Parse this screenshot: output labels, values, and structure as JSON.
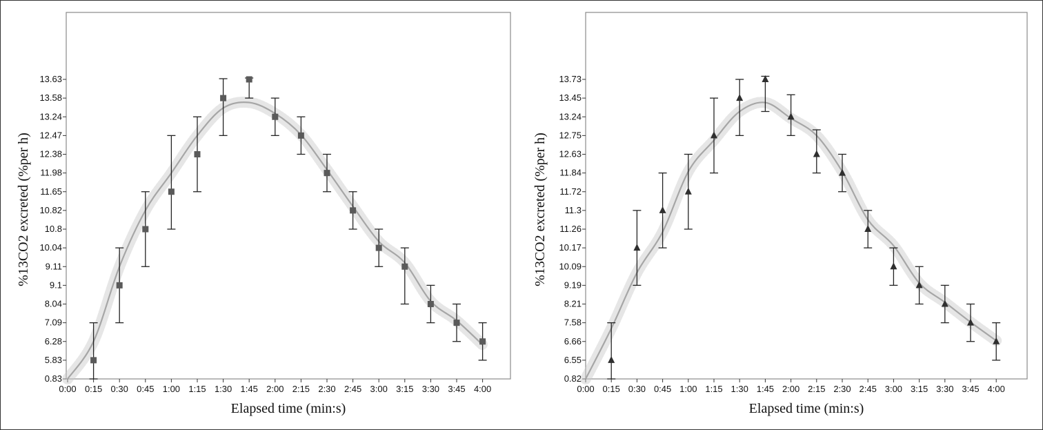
{
  "chart_data": [
    {
      "type": "scatter",
      "xlabel": "Elapsed time (min:s)",
      "ylabel": "%13CO2 excreted (%per h)",
      "y_tick_labels": [
        "0.83",
        "5.83",
        "6.28",
        "7.09",
        "8.04",
        "9.1",
        "9.11",
        "10.04",
        "10.8",
        "10.82",
        "11.65",
        "11.98",
        "12.38",
        "12.47",
        "13.24",
        "13.58",
        "13.63"
      ],
      "categories": [
        "0:00",
        "0:15",
        "0:30",
        "0:45",
        "1:00",
        "1:15",
        "1:30",
        "1:45",
        "2:00",
        "2:15",
        "2:30",
        "2:45",
        "3:00",
        "3:15",
        "3:30",
        "3:45",
        "4:00"
      ],
      "marker": "square",
      "marker_color": "#5a5a5a",
      "fit_color": "#a6a6a6",
      "band_color": "#c8c8c8",
      "points": [
        {
          "x": "0:15",
          "y": 5.83,
          "err_low": 0.83,
          "err_high": 7.09
        },
        {
          "x": "0:30",
          "y": 9.1,
          "err_low": 7.09,
          "err_high": 10.04
        },
        {
          "x": "0:45",
          "y": 10.8,
          "err_low": 9.11,
          "err_high": 11.65
        },
        {
          "x": "1:00",
          "y": 11.65,
          "err_low": 10.8,
          "err_high": 12.47
        },
        {
          "x": "1:15",
          "y": 12.38,
          "err_low": 11.65,
          "err_high": 13.24
        },
        {
          "x": "1:30",
          "y": 13.58,
          "err_low": 12.47,
          "err_high": 13.65
        },
        {
          "x": "1:45",
          "y": 13.63,
          "err_low": 13.58,
          "err_high": 13.67
        },
        {
          "x": "2:00",
          "y": 13.24,
          "err_low": 12.47,
          "err_high": 13.58
        },
        {
          "x": "2:15",
          "y": 12.47,
          "err_low": 12.38,
          "err_high": 13.24
        },
        {
          "x": "2:30",
          "y": 11.98,
          "err_low": 11.65,
          "err_high": 12.38
        },
        {
          "x": "2:45",
          "y": 10.82,
          "err_low": 10.8,
          "err_high": 11.65
        },
        {
          "x": "3:00",
          "y": 10.04,
          "err_low": 9.11,
          "err_high": 10.8
        },
        {
          "x": "3:15",
          "y": 9.11,
          "err_low": 8.04,
          "err_high": 10.04
        },
        {
          "x": "3:30",
          "y": 8.04,
          "err_low": 7.09,
          "err_high": 9.1
        },
        {
          "x": "3:45",
          "y": 7.09,
          "err_low": 6.28,
          "err_high": 8.04
        },
        {
          "x": "4:00",
          "y": 6.28,
          "err_low": 5.83,
          "err_high": 7.09
        }
      ],
      "fit_curve": [
        {
          "x": "0:00",
          "y": 0.83
        },
        {
          "x": "0:15",
          "y": 6.28
        },
        {
          "x": "0:30",
          "y": 9.11
        },
        {
          "x": "0:45",
          "y": 10.82
        },
        {
          "x": "1:00",
          "y": 11.98
        },
        {
          "x": "1:15",
          "y": 12.47
        },
        {
          "x": "1:30",
          "y": 13.4
        },
        {
          "x": "1:45",
          "y": 13.5
        },
        {
          "x": "2:00",
          "y": 13.3
        },
        {
          "x": "2:15",
          "y": 12.5
        },
        {
          "x": "2:30",
          "y": 12.05
        },
        {
          "x": "2:45",
          "y": 11.0
        },
        {
          "x": "3:00",
          "y": 10.3
        },
        {
          "x": "3:15",
          "y": 9.3
        },
        {
          "x": "3:30",
          "y": 8.2
        },
        {
          "x": "3:45",
          "y": 7.2
        },
        {
          "x": "4:00",
          "y": 6.2
        }
      ]
    },
    {
      "type": "scatter",
      "xlabel": "Elapsed time (min:s)",
      "ylabel": "%13CO2 excreted (%per h)",
      "y_tick_labels": [
        "0.82",
        "6.55",
        "6.66",
        "7.58",
        "8.21",
        "9.19",
        "10.09",
        "10.17",
        "11.26",
        "11.3",
        "11.72",
        "11.84",
        "12.63",
        "12.75",
        "13.24",
        "13.45",
        "13.73"
      ],
      "categories": [
        "0:00",
        "0:15",
        "0:30",
        "0:45",
        "1:00",
        "1:15",
        "1:30",
        "1:45",
        "2:00",
        "2:15",
        "2:30",
        "2:45",
        "3:00",
        "3:15",
        "3:30",
        "3:45",
        "4:00"
      ],
      "marker": "triangle",
      "marker_color": "#2f2f2f",
      "fit_color": "#a6a6a6",
      "band_color": "#c8c8c8",
      "points": [
        {
          "x": "0:15",
          "y": 6.55,
          "err_low": 0.82,
          "err_high": 7.58
        },
        {
          "x": "0:30",
          "y": 10.17,
          "err_low": 9.19,
          "err_high": 11.3
        },
        {
          "x": "0:45",
          "y": 11.3,
          "err_low": 10.17,
          "err_high": 11.84
        },
        {
          "x": "1:00",
          "y": 11.72,
          "err_low": 11.26,
          "err_high": 12.63
        },
        {
          "x": "1:15",
          "y": 12.75,
          "err_low": 11.84,
          "err_high": 13.45
        },
        {
          "x": "1:30",
          "y": 13.45,
          "err_low": 12.75,
          "err_high": 13.73
        },
        {
          "x": "1:45",
          "y": 13.73,
          "err_low": 13.3,
          "err_high": 13.82
        },
        {
          "x": "2:00",
          "y": 13.24,
          "err_low": 12.75,
          "err_high": 13.5
        },
        {
          "x": "2:15",
          "y": 12.63,
          "err_low": 11.84,
          "err_high": 12.9
        },
        {
          "x": "2:30",
          "y": 11.84,
          "err_low": 11.72,
          "err_high": 12.63
        },
        {
          "x": "2:45",
          "y": 11.26,
          "err_low": 10.17,
          "err_high": 11.3
        },
        {
          "x": "3:00",
          "y": 10.09,
          "err_low": 9.19,
          "err_high": 10.17
        },
        {
          "x": "3:15",
          "y": 9.19,
          "err_low": 8.21,
          "err_high": 10.09
        },
        {
          "x": "3:30",
          "y": 8.21,
          "err_low": 7.58,
          "err_high": 9.19
        },
        {
          "x": "3:45",
          "y": 7.58,
          "err_low": 6.66,
          "err_high": 8.21
        },
        {
          "x": "4:00",
          "y": 6.66,
          "err_low": 6.55,
          "err_high": 7.58
        }
      ],
      "fit_curve": [
        {
          "x": "0:00",
          "y": 0.82
        },
        {
          "x": "0:15",
          "y": 7.3
        },
        {
          "x": "0:30",
          "y": 9.8
        },
        {
          "x": "0:45",
          "y": 11.1
        },
        {
          "x": "1:00",
          "y": 11.9
        },
        {
          "x": "1:15",
          "y": 12.72
        },
        {
          "x": "1:30",
          "y": 13.3
        },
        {
          "x": "1:45",
          "y": 13.4
        },
        {
          "x": "2:00",
          "y": 13.2
        },
        {
          "x": "2:15",
          "y": 12.75
        },
        {
          "x": "2:30",
          "y": 11.9
        },
        {
          "x": "2:45",
          "y": 11.28
        },
        {
          "x": "3:00",
          "y": 10.3
        },
        {
          "x": "3:15",
          "y": 9.3
        },
        {
          "x": "3:30",
          "y": 8.3
        },
        {
          "x": "3:45",
          "y": 7.6
        },
        {
          "x": "4:00",
          "y": 6.7
        }
      ]
    }
  ]
}
